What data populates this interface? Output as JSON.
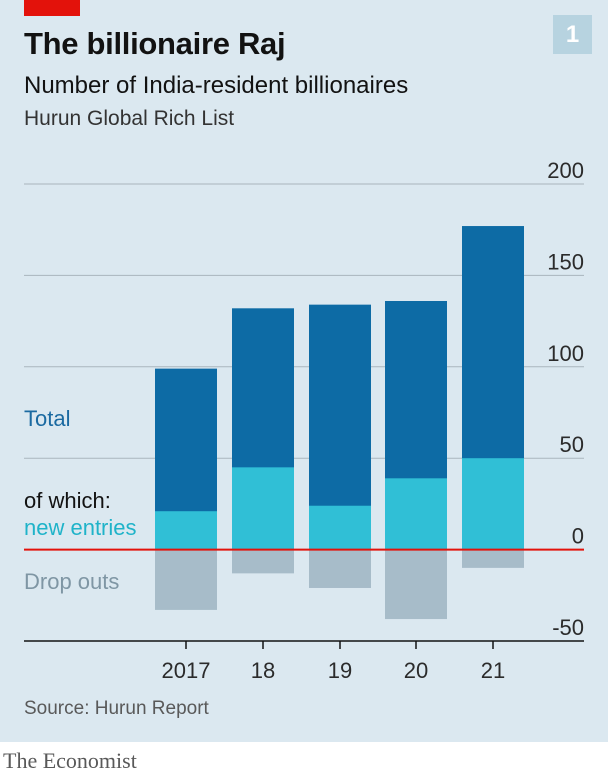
{
  "header": {
    "title": "The billionaire Raj",
    "subtitle": "Number of India-resident billionaires",
    "list_source": "Hurun Global Rich List",
    "badge": "1"
  },
  "footer": {
    "source": "Source: Hurun Report",
    "brand": "The Economist"
  },
  "legend": {
    "total": "Total",
    "of_which": "of which:",
    "new_entries": "new entries",
    "drop_outs": "Drop outs"
  },
  "colors": {
    "total": "#0d6ba5",
    "new_entries": "#30bfd6",
    "drop_outs": "#a7bcc9",
    "zero_line": "#e3120b",
    "gridline": "#a9b5bd",
    "background": "#dbe8f0"
  },
  "chart_data": {
    "type": "bar",
    "categories": [
      "2017",
      "18",
      "19",
      "20",
      "21"
    ],
    "series": [
      {
        "name": "Total",
        "values": [
          99,
          132,
          134,
          136,
          177
        ]
      },
      {
        "name": "new entries",
        "values": [
          21,
          45,
          24,
          39,
          50
        ]
      },
      {
        "name": "Drop outs",
        "values": [
          -33,
          -13,
          -21,
          -38,
          -10
        ]
      }
    ],
    "ylim": [
      -50,
      200
    ],
    "yticks": [
      200,
      150,
      100,
      50,
      0,
      -50
    ],
    "ytick_labels": [
      "200",
      "150",
      "100",
      "50",
      "0",
      "-50"
    ],
    "grid": true,
    "yaxis_position": "right"
  }
}
